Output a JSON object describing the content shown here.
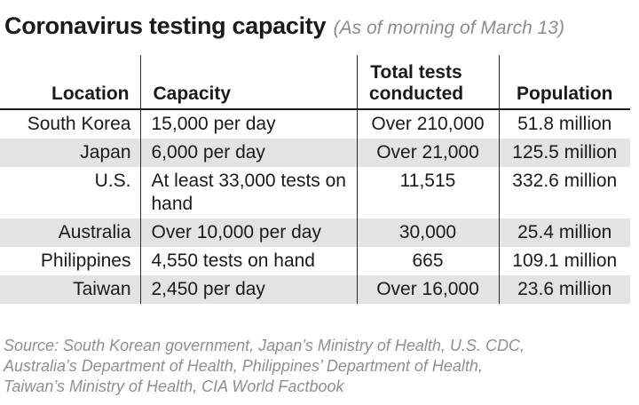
{
  "title": "Coronavirus testing capacity",
  "subtitle": "(As of morning of March 13)",
  "table": {
    "headers": [
      "Location",
      "Capacity",
      "Total tests conducted",
      "Population"
    ],
    "rows": [
      [
        "South Korea",
        "15,000 per day",
        "Over 210,000",
        "51.8 million"
      ],
      [
        "Japan",
        "6,000 per day",
        "Over 21,000",
        "125.5 million"
      ],
      [
        "U.S.",
        "At least 33,000 tests on hand",
        "11,515",
        "332.6 million"
      ],
      [
        "Australia",
        "Over 10,000 per day",
        "30,000",
        "25.4 million"
      ],
      [
        "Philippines",
        "4,550 tests on hand",
        "665",
        "109.1 million"
      ],
      [
        "Taiwan",
        "2,450 per day",
        "Over 16,000",
        "23.6 million"
      ]
    ]
  },
  "source_lines": [
    "Source: South Korean government, Japan’s Ministry of Health, U.S. CDC,",
    "Australia’s Department of Health, Philippines’ Department of Health,",
    "Taiwan’s Ministry of Health, CIA World Factbook"
  ]
}
